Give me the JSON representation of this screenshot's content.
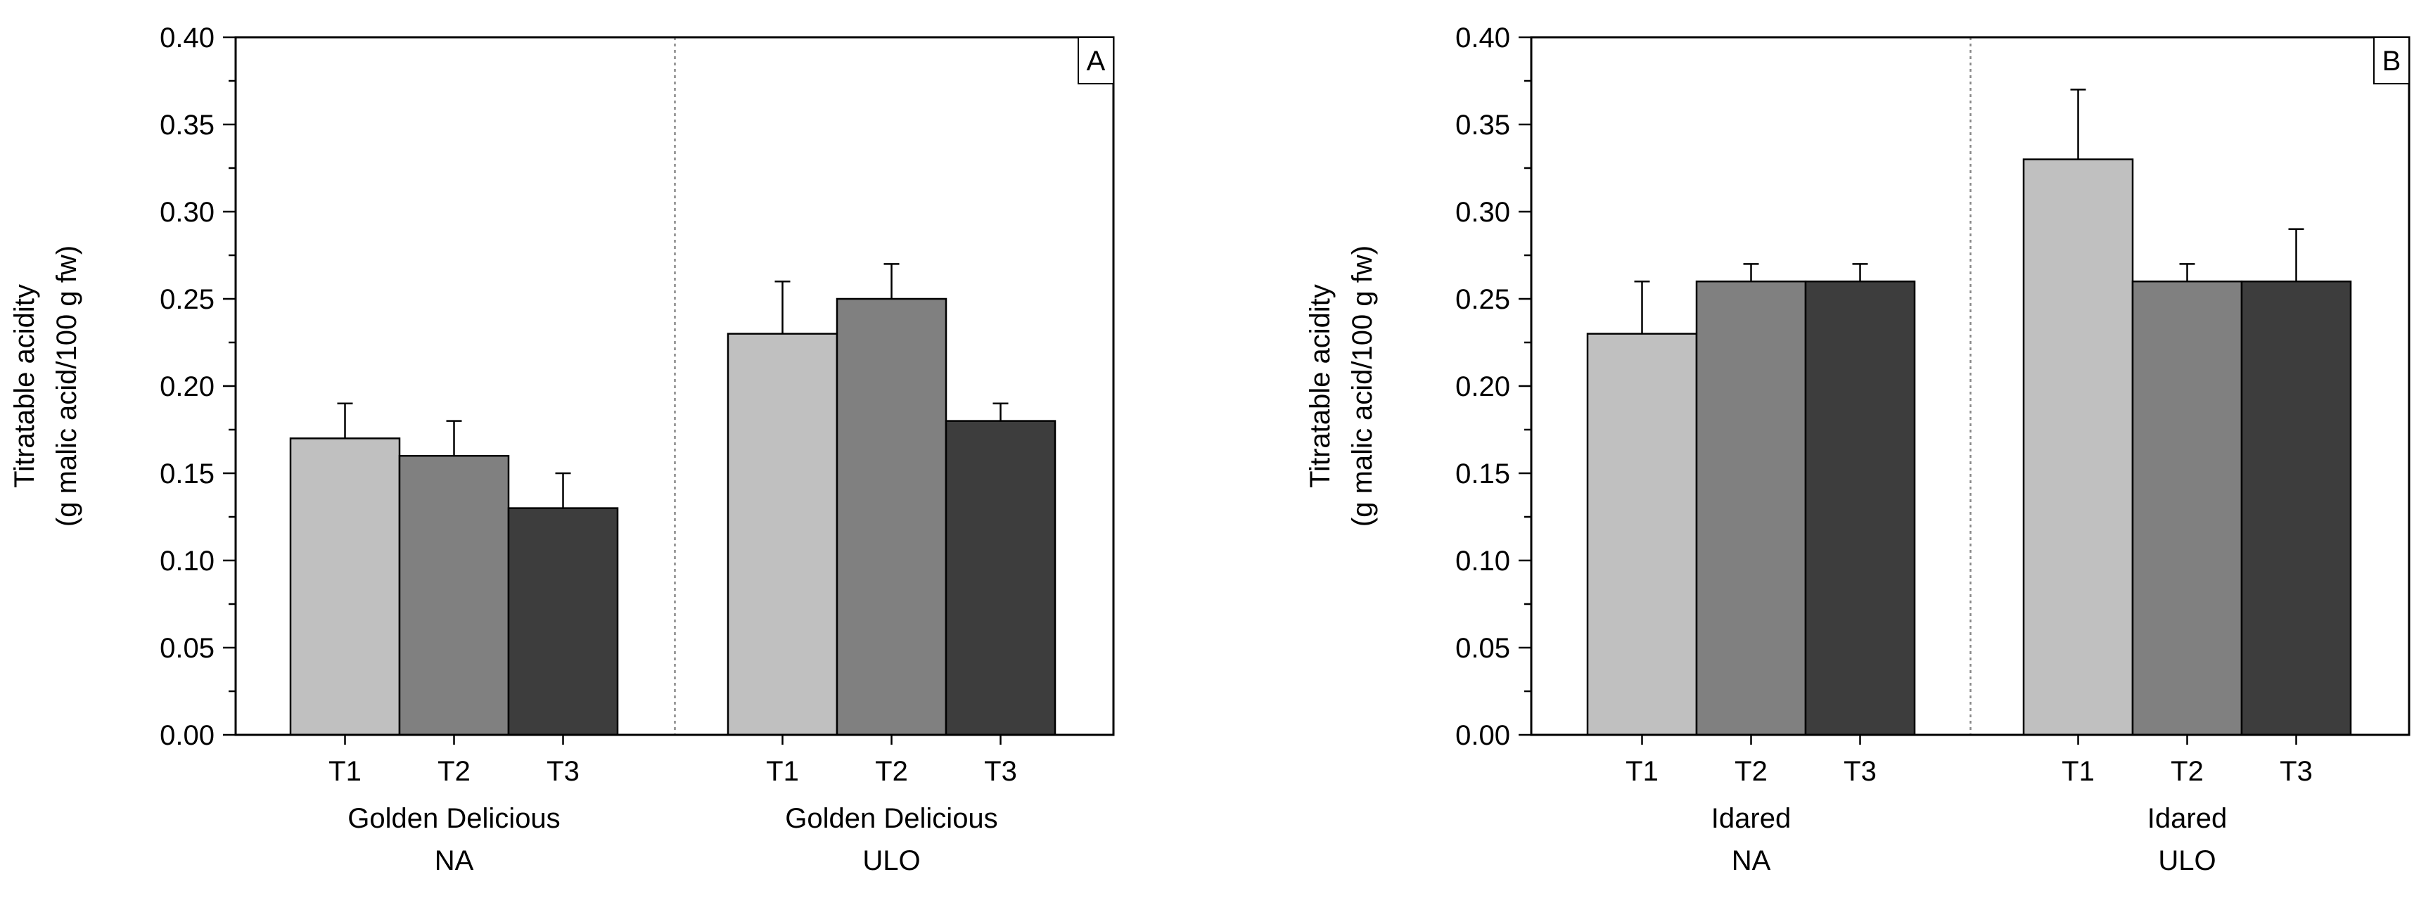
{
  "chart_data": [
    {
      "type": "bar",
      "panel_label": "A",
      "ylabel_line1": "Titratable acidity",
      "ylabel_line2": "(g malic acid/100 g fw)",
      "ylim": [
        0,
        0.4
      ],
      "yticks": [
        "0.00",
        "0.05",
        "0.10",
        "0.15",
        "0.20",
        "0.25",
        "0.30",
        "0.35",
        "0.40"
      ],
      "groups": [
        {
          "label_line1": "Golden Delicious",
          "label_line2": "NA",
          "categories": [
            "T1",
            "T2",
            "T3"
          ],
          "values": [
            0.17,
            0.16,
            0.13
          ],
          "errors": [
            0.02,
            0.02,
            0.02
          ]
        },
        {
          "label_line1": "Golden Delicious",
          "label_line2": "ULO",
          "categories": [
            "T1",
            "T2",
            "T3"
          ],
          "values": [
            0.23,
            0.25,
            0.18
          ],
          "errors": [
            0.03,
            0.02,
            0.01
          ]
        }
      ]
    },
    {
      "type": "bar",
      "panel_label": "B",
      "ylabel_line1": "Titratable acidity",
      "ylabel_line2": "(g malic acid/100 g fw)",
      "ylim": [
        0,
        0.4
      ],
      "yticks": [
        "0.00",
        "0.05",
        "0.10",
        "0.15",
        "0.20",
        "0.25",
        "0.30",
        "0.35",
        "0.40"
      ],
      "groups": [
        {
          "label_line1": "Idared",
          "label_line2": "NA",
          "categories": [
            "T1",
            "T2",
            "T3"
          ],
          "values": [
            0.23,
            0.26,
            0.26
          ],
          "errors": [
            0.03,
            0.01,
            0.01
          ]
        },
        {
          "label_line1": "Idared",
          "label_line2": "ULO",
          "categories": [
            "T1",
            "T2",
            "T3"
          ],
          "values": [
            0.33,
            0.26,
            0.26
          ],
          "errors": [
            0.04,
            0.01,
            0.03
          ]
        }
      ]
    }
  ],
  "colors": {
    "T1": "#c0c0c0",
    "T2": "#808080",
    "T3": "#3d3d3d",
    "axis": "#000000",
    "divider": "#888888"
  }
}
